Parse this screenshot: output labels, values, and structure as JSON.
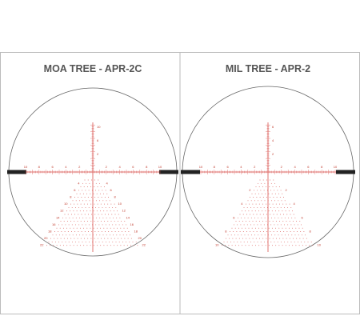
{
  "panels": [
    {
      "title": "MOA TREE - APR-2C",
      "h_labels": [
        "10",
        "8",
        "6",
        "4",
        "2",
        "2",
        "4",
        "6",
        "8",
        "10"
      ],
      "v_labels": [
        "10",
        "6",
        "2"
      ],
      "tree_labels": [
        "4",
        "6",
        "8",
        "10",
        "12",
        "14",
        "16",
        "18",
        "20",
        "22"
      ]
    },
    {
      "title": "MIL TREE - APR-2",
      "h_labels": [
        "10",
        "8",
        "6",
        "4",
        "2",
        "2",
        "4",
        "6",
        "8",
        "10"
      ],
      "v_labels": [
        "6",
        "4",
        "2"
      ],
      "tree_labels": [
        "2",
        "4",
        "6",
        "8",
        "10"
      ]
    }
  ]
}
